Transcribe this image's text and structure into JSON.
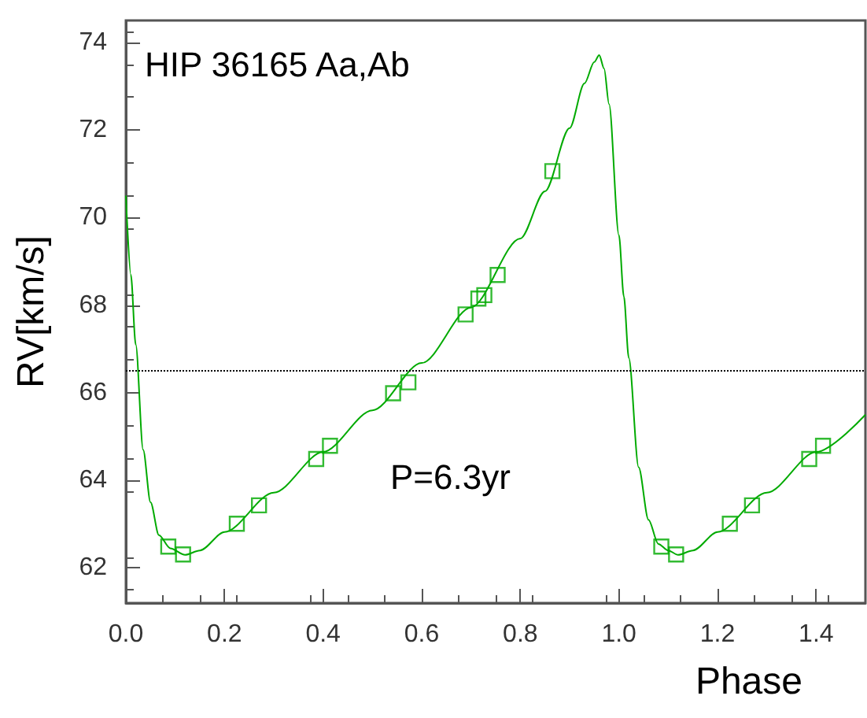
{
  "chart_data": {
    "type": "line",
    "xlabel": "Phase",
    "ylabel": "RV[km/s]",
    "annotations": [
      "HIP 36165 Aa,Ab",
      "P=6.3yr"
    ],
    "xlim": [
      0,
      1.5
    ],
    "xticks": [
      {
        "value": 0,
        "label": "0.0"
      },
      {
        "value": 0.2,
        "label": "0.2"
      },
      {
        "value": 0.4,
        "label": "0.4"
      },
      {
        "value": 0.6,
        "label": "0.6"
      },
      {
        "value": 0.8,
        "label": "0.8"
      },
      {
        "value": 1.0,
        "label": "1.0"
      },
      {
        "value": 1.2,
        "label": "1.2"
      },
      {
        "value": 1.4,
        "label": "1.4"
      }
    ],
    "ylim": [
      61.2,
      74.5
    ],
    "yticks": [
      62,
      64,
      66,
      68,
      70,
      72,
      74
    ],
    "grid": false,
    "ref_lines": [
      {
        "axis": "y",
        "value": 66.5,
        "color": "#000000",
        "line_style": "dotted"
      }
    ],
    "series": [
      {
        "color": "#00aa00",
        "marker": "none",
        "line_style": "solid",
        "x": [
          0,
          0.01,
          0.02,
          0.035,
          0.05,
          0.067,
          0.09,
          0.12,
          0.15,
          0.2,
          0.3,
          0.4,
          0.5,
          0.6,
          0.7,
          0.8,
          0.85,
          0.9,
          0.93,
          0.95,
          0.96,
          0.97,
          0.98,
          1.0,
          1.01,
          1.02,
          1.04,
          1.06,
          1.08,
          1.1,
          1.12,
          1.15,
          1.2,
          1.3,
          1.4,
          1.5
        ],
        "values": [
          70.5,
          68.7,
          67.1,
          64.7,
          63.5,
          62.75,
          62.45,
          62.3,
          62.4,
          62.82,
          63.72,
          64.65,
          65.6,
          66.68,
          67.95,
          69.52,
          70.6,
          72.04,
          73.06,
          73.55,
          73.71,
          73.4,
          72.59,
          69.6,
          68.2,
          66.8,
          64.3,
          63.1,
          62.55,
          62.4,
          62.3,
          62.4,
          62.82,
          63.72,
          64.65,
          65.5
        ]
      },
      {
        "type": "scatter",
        "color": "#00aa00",
        "marker": "square",
        "x": [
          0.086,
          0.116,
          0.225,
          0.27,
          0.386,
          0.414,
          0.542,
          0.573,
          0.689,
          0.715,
          0.727,
          0.754,
          0.865,
          1.086,
          1.116,
          1.225,
          1.27,
          1.386,
          1.414
        ],
        "values": [
          62.49,
          62.31,
          63.01,
          63.43,
          64.49,
          64.79,
          65.99,
          66.24,
          67.79,
          68.15,
          68.23,
          68.69,
          71.06,
          62.49,
          62.31,
          63.01,
          63.43,
          64.49,
          64.79
        ]
      }
    ]
  }
}
